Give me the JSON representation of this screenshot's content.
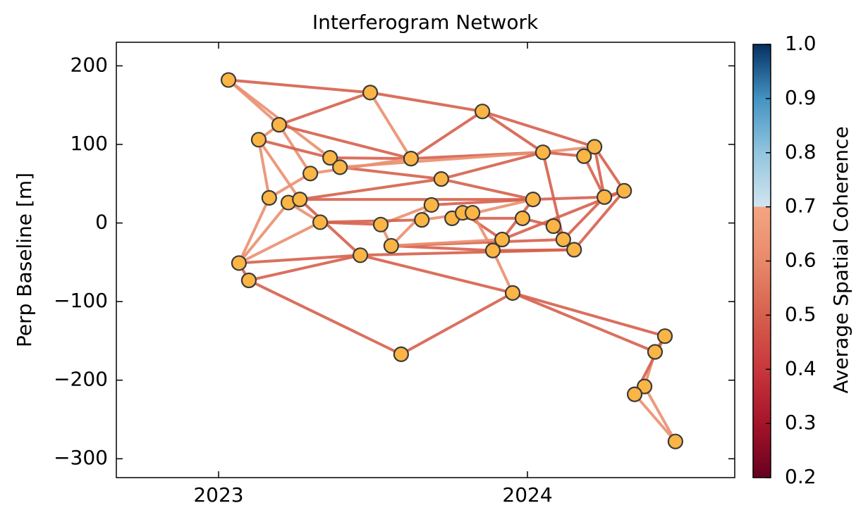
{
  "chart_data": {
    "type": "network",
    "title": "Interferogram Network",
    "y_label": "Perp Baseline [m]",
    "colorbar_label": "Average Spatial Coherence",
    "xlim": [
      2022.669,
      2024.671
    ],
    "xticks": [
      2023,
      2024
    ],
    "ylim": [
      -324,
      230
    ],
    "yticks": [
      {
        "value": -300,
        "label": "−300"
      },
      {
        "value": -200,
        "label": "−200"
      },
      {
        "value": -100,
        "label": "−100"
      },
      0,
      100,
      200
    ],
    "clim": [
      0.2,
      1.0
    ],
    "cticks": [
      0.2,
      0.3,
      0.4,
      0.5,
      0.6,
      0.7,
      0.8,
      0.9,
      {
        "value": 1,
        "label": "1.0"
      }
    ],
    "colormap": [
      {
        "value": 0.2,
        "color": "#67001f"
      },
      {
        "value": 0.3,
        "color": "#a51429"
      },
      {
        "value": 0.4,
        "color": "#c8373c"
      },
      {
        "value": 0.5,
        "color": "#d6604d"
      },
      {
        "value": 0.6,
        "color": "#e8896b"
      },
      {
        "value": 0.7,
        "color": "#f4a582"
      },
      {
        "value": 0.7,
        "color": "#d1e5f0"
      },
      {
        "value": 0.8,
        "color": "#92c5de"
      },
      {
        "value": 0.9,
        "color": "#4393c3"
      },
      {
        "value": 1.0,
        "color": "#053061"
      }
    ],
    "node_color": "#fbb545",
    "x": [
      2023.032,
      2023.491,
      2023.854,
      2023.196,
      2023.13,
      2023.623,
      2023.361,
      2023.393,
      2023.297,
      2024.05,
      2024.217,
      2024.183,
      2023.721,
      2024.313,
      2024.249,
      2024.018,
      2023.164,
      2023.226,
      2023.263,
      2023.689,
      2023.329,
      2023.525,
      2023.658,
      2023.756,
      2023.79,
      2023.822,
      2023.984,
      2024.084,
      2023.918,
      2024.116,
      2023.559,
      2023.888,
      2024.151,
      2023.459,
      2023.066,
      2023.098,
      2023.952,
      2023.591,
      2024.445,
      2024.413,
      2024.379,
      2024.347,
      2024.479
    ],
    "values": [
      182,
      166,
      142,
      125,
      106,
      82,
      83,
      71,
      63,
      90,
      97,
      85,
      56,
      41,
      33,
      30,
      32,
      26,
      30,
      23,
      1,
      -2,
      4,
      6,
      13,
      13,
      6,
      -4,
      -21,
      -21,
      -29,
      -35,
      -34,
      -41,
      -51,
      -73,
      -89,
      -167,
      -144,
      -164,
      -208,
      -218,
      -278
    ],
    "edges": [
      {
        "from": 0,
        "to": 1,
        "coherence": 0.5
      },
      {
        "from": 0,
        "to": 3,
        "coherence": 0.62
      },
      {
        "from": 0,
        "to": 6,
        "coherence": 0.62
      },
      {
        "from": 1,
        "to": 2,
        "coherence": 0.5
      },
      {
        "from": 1,
        "to": 5,
        "coherence": 0.62
      },
      {
        "from": 3,
        "to": 1,
        "coherence": 0.5
      },
      {
        "from": 3,
        "to": 5,
        "coherence": 0.5
      },
      {
        "from": 3,
        "to": 4,
        "coherence": 0.62
      },
      {
        "from": 3,
        "to": 8,
        "coherence": 0.62
      },
      {
        "from": 2,
        "to": 5,
        "coherence": 0.5
      },
      {
        "from": 2,
        "to": 9,
        "coherence": 0.5
      },
      {
        "from": 2,
        "to": 10,
        "coherence": 0.5
      },
      {
        "from": 4,
        "to": 6,
        "coherence": 0.5
      },
      {
        "from": 4,
        "to": 16,
        "coherence": 0.62
      },
      {
        "from": 4,
        "to": 18,
        "coherence": 0.62
      },
      {
        "from": 6,
        "to": 5,
        "coherence": 0.5
      },
      {
        "from": 6,
        "to": 7,
        "coherence": 0.62
      },
      {
        "from": 5,
        "to": 9,
        "coherence": 0.5
      },
      {
        "from": 7,
        "to": 9,
        "coherence": 0.62
      },
      {
        "from": 7,
        "to": 12,
        "coherence": 0.5
      },
      {
        "from": 8,
        "to": 5,
        "coherence": 0.62
      },
      {
        "from": 8,
        "to": 16,
        "coherence": 0.62
      },
      {
        "from": 9,
        "to": 10,
        "coherence": 0.62
      },
      {
        "from": 9,
        "to": 11,
        "coherence": 0.5
      },
      {
        "from": 9,
        "to": 29,
        "coherence": 0.5
      },
      {
        "from": 9,
        "to": 12,
        "coherence": 0.5
      },
      {
        "from": 10,
        "to": 13,
        "coherence": 0.5
      },
      {
        "from": 10,
        "to": 14,
        "coherence": 0.5
      },
      {
        "from": 11,
        "to": 14,
        "coherence": 0.5
      },
      {
        "from": 12,
        "to": 18,
        "coherence": 0.5
      },
      {
        "from": 12,
        "to": 15,
        "coherence": 0.5
      },
      {
        "from": 13,
        "to": 32,
        "coherence": 0.5
      },
      {
        "from": 13,
        "to": 28,
        "coherence": 0.5
      },
      {
        "from": 13,
        "to": 14,
        "coherence": 0.5
      },
      {
        "from": 14,
        "to": 15,
        "coherence": 0.5
      },
      {
        "from": 14,
        "to": 29,
        "coherence": 0.5
      },
      {
        "from": 15,
        "to": 19,
        "coherence": 0.5
      },
      {
        "from": 15,
        "to": 28,
        "coherence": 0.5
      },
      {
        "from": 15,
        "to": 23,
        "coherence": 0.62
      },
      {
        "from": 16,
        "to": 34,
        "coherence": 0.62
      },
      {
        "from": 17,
        "to": 20,
        "coherence": 0.62
      },
      {
        "from": 17,
        "to": 34,
        "coherence": 0.62
      },
      {
        "from": 18,
        "to": 15,
        "coherence": 0.5
      },
      {
        "from": 18,
        "to": 33,
        "coherence": 0.5
      },
      {
        "from": 19,
        "to": 21,
        "coherence": 0.62
      },
      {
        "from": 19,
        "to": 30,
        "coherence": 0.62
      },
      {
        "from": 20,
        "to": 21,
        "coherence": 0.5
      },
      {
        "from": 20,
        "to": 22,
        "coherence": 0.5
      },
      {
        "from": 20,
        "to": 34,
        "coherence": 0.62
      },
      {
        "from": 21,
        "to": 30,
        "coherence": 0.62
      },
      {
        "from": 22,
        "to": 25,
        "coherence": 0.62
      },
      {
        "from": 23,
        "to": 26,
        "coherence": 0.5
      },
      {
        "from": 24,
        "to": 28,
        "coherence": 0.5
      },
      {
        "from": 25,
        "to": 31,
        "coherence": 0.62
      },
      {
        "from": 26,
        "to": 27,
        "coherence": 0.5
      },
      {
        "from": 27,
        "to": 29,
        "coherence": 0.5
      },
      {
        "from": 30,
        "to": 31,
        "coherence": 0.5
      },
      {
        "from": 30,
        "to": 29,
        "coherence": 0.5
      },
      {
        "from": 30,
        "to": 28,
        "coherence": 0.62
      },
      {
        "from": 31,
        "to": 32,
        "coherence": 0.5
      },
      {
        "from": 31,
        "to": 36,
        "coherence": 0.62
      },
      {
        "from": 32,
        "to": 27,
        "coherence": 0.5
      },
      {
        "from": 33,
        "to": 34,
        "coherence": 0.5
      },
      {
        "from": 33,
        "to": 36,
        "coherence": 0.5
      },
      {
        "from": 36,
        "to": 38,
        "coherence": 0.5
      },
      {
        "from": 36,
        "to": 39,
        "coherence": 0.5
      },
      {
        "from": 34,
        "to": 35,
        "coherence": 0.5
      },
      {
        "from": 35,
        "to": 33,
        "coherence": 0.5
      },
      {
        "from": 35,
        "to": 37,
        "coherence": 0.5
      },
      {
        "from": 37,
        "to": 36,
        "coherence": 0.5
      },
      {
        "from": 33,
        "to": 32,
        "coherence": 0.5
      },
      {
        "from": 38,
        "to": 39,
        "coherence": 0.5
      },
      {
        "from": 39,
        "to": 40,
        "coherence": 0.62
      },
      {
        "from": 38,
        "to": 41,
        "coherence": 0.5
      },
      {
        "from": 40,
        "to": 41,
        "coherence": 0.62
      },
      {
        "from": 40,
        "to": 42,
        "coherence": 0.62
      },
      {
        "from": 41,
        "to": 42,
        "coherence": 0.62
      }
    ]
  }
}
